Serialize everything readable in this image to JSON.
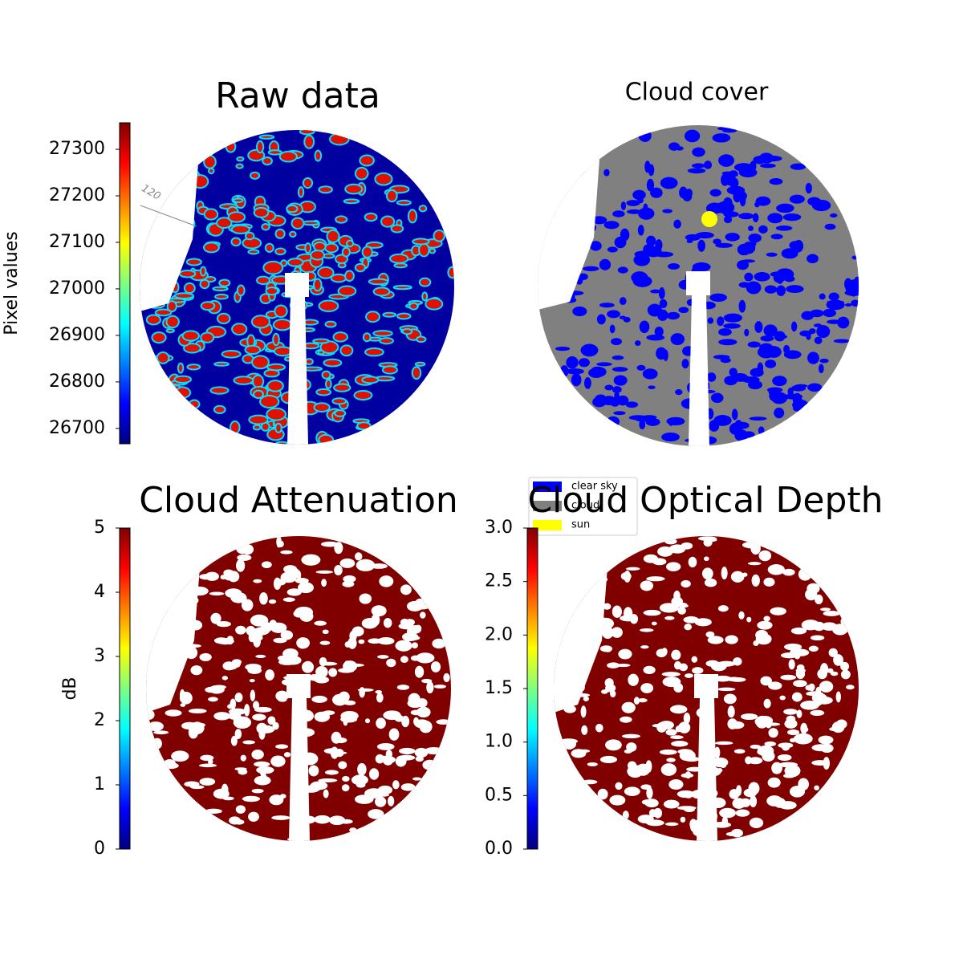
{
  "chart_data": [
    {
      "type": "image",
      "title": "Raw data",
      "colormap": "jet",
      "ylabel": "Pixel values",
      "ylim": [
        26667,
        27357
      ],
      "yticks": [
        26700,
        26800,
        26900,
        27000,
        27100,
        27200,
        27300
      ],
      "annotations": [
        "120"
      ]
    },
    {
      "type": "image",
      "title": "Cloud cover",
      "legend": "lower left",
      "series": [
        {
          "name": "clear sky",
          "color": "#0000ff"
        },
        {
          "name": "cloud",
          "color": "#808080"
        },
        {
          "name": "sun",
          "color": "#ffff00"
        }
      ]
    },
    {
      "type": "image",
      "title": "Cloud Attenuation",
      "colormap": "jet",
      "ylabel": "dB",
      "ylim": [
        0,
        5
      ],
      "yticks": [
        0,
        1,
        2,
        3,
        4,
        5
      ]
    },
    {
      "type": "image",
      "title": "Cloud Optical Depth",
      "colormap": "jet",
      "ylim": [
        0,
        3
      ],
      "yticks": [
        {
          "value": 0,
          "label": "0.0"
        },
        {
          "value": 0.5,
          "label": "0.5"
        },
        {
          "value": 1,
          "label": "1.0"
        },
        {
          "value": 1.5,
          "label": "1.5"
        },
        {
          "value": 2,
          "label": "2.0"
        },
        {
          "value": 2.5,
          "label": "2.5"
        },
        {
          "value": 3,
          "label": "3.0"
        }
      ]
    }
  ]
}
